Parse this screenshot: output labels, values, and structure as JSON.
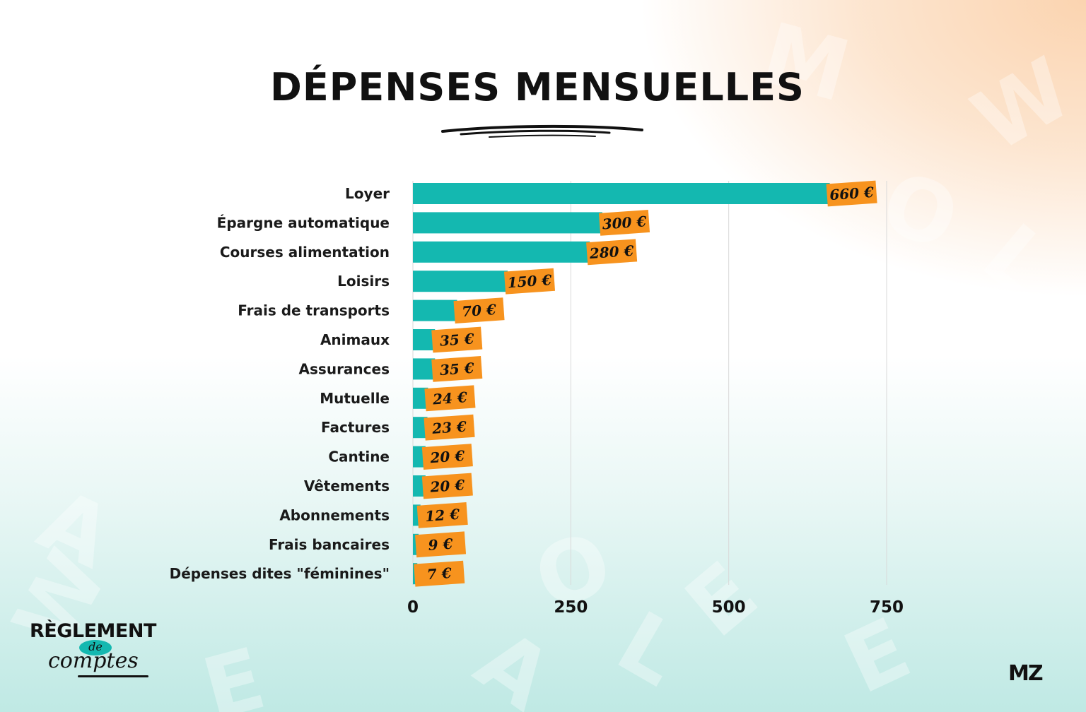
{
  "title": "DÉPENSES MENSUELLES",
  "branding": {
    "left_logo_line1": "RÈGLEMENT",
    "left_logo_badge": "de",
    "left_logo_line2": "comptes",
    "right_logo": "MZ"
  },
  "colors": {
    "bar": "#14b8b0",
    "label_tag": "#f7931e",
    "text": "#111111",
    "grid": "#d9d9d9"
  },
  "chart_data": {
    "type": "bar",
    "orientation": "horizontal",
    "title": "DÉPENSES MENSUELLES",
    "categories": [
      "Loyer",
      "Épargne automatique",
      "Courses alimentation",
      "Loisirs",
      "Frais de transports",
      "Animaux",
      "Assurances",
      "Mutuelle",
      "Factures",
      "Cantine",
      "Vêtements",
      "Abonnements",
      "Frais bancaires",
      "Dépenses dites \"féminines\""
    ],
    "values": [
      660,
      300,
      280,
      150,
      70,
      35,
      35,
      24,
      23,
      20,
      20,
      12,
      9,
      7
    ],
    "value_labels": [
      "660 €",
      "300 €",
      "280 €",
      "150 €",
      "70 €",
      "35 €",
      "35 €",
      "24 €",
      "23 €",
      "20 €",
      "20 €",
      "12 €",
      "9 €",
      "7 €"
    ],
    "xlim": [
      0,
      750
    ],
    "xticks": [
      0,
      250,
      500,
      750
    ],
    "xtick_labels": [
      "0",
      "250",
      "500",
      "750"
    ],
    "xlabel": "",
    "ylabel": "",
    "grid": "vertical",
    "legend": "none"
  }
}
